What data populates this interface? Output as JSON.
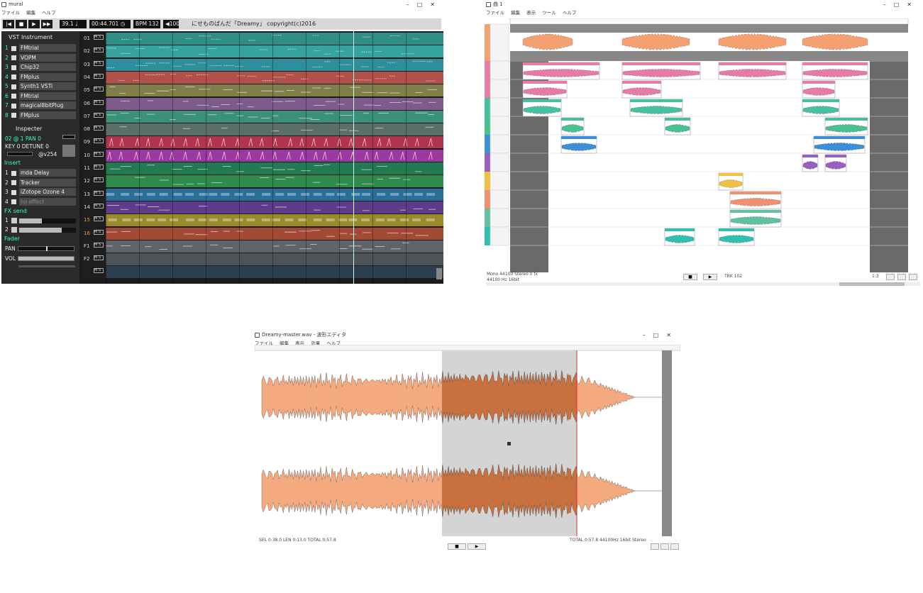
{
  "tracker": {
    "title": "mural",
    "menu": [
      "ファイル",
      "編集",
      "ヘルプ"
    ],
    "position": "39.1 ♩",
    "time": "00:44.701 ◷",
    "bpm": "BPM 132",
    "volume": "◀100",
    "song": "にせものぱんだ「Dreamy」 copyright(c)2016",
    "vst_title": "VST Instrument",
    "instruments": [
      {
        "n": "1",
        "name": "FMtrial"
      },
      {
        "n": "2",
        "name": "VOPM"
      },
      {
        "n": "3",
        "name": "Chip32"
      },
      {
        "n": "4",
        "name": "FMplus"
      },
      {
        "n": "5",
        "name": "Synth1 VSTi"
      },
      {
        "n": "6",
        "name": "FMtrial"
      },
      {
        "n": "7",
        "name": "magical8bitPlug"
      },
      {
        "n": "8",
        "name": "FMplus"
      }
    ],
    "inspector_title": "Inspecter",
    "insp_line1": "02  @ 1  PAN  0",
    "insp_line2": "KEY 0 DETUNE 0",
    "insp_line3": "@v254",
    "insert_title": "Insert",
    "inserts": [
      {
        "n": "1",
        "name": "mda Delay"
      },
      {
        "n": "2",
        "name": "Tracker"
      },
      {
        "n": "3",
        "name": "iZotope Ozone 4"
      },
      {
        "n": "4",
        "name": "no effect"
      }
    ],
    "fx_title": "FX send",
    "fx": [
      "1",
      "2"
    ],
    "fader_title": "Fader",
    "pan_label": "PAN",
    "vol_label": "VOL",
    "tracks": [
      {
        "n": "01",
        "c": "#2f8f86"
      },
      {
        "n": "02",
        "c": "#36a3a0"
      },
      {
        "n": "03",
        "c": "#2e8e9c"
      },
      {
        "n": "04",
        "c": "#b0524a"
      },
      {
        "n": "05",
        "c": "#7f7f4a"
      },
      {
        "n": "06",
        "c": "#7d5b8a"
      },
      {
        "n": "07",
        "c": "#3c9077"
      },
      {
        "n": "08",
        "c": "#5a6f6a"
      },
      {
        "n": "09",
        "c": "#b0364e"
      },
      {
        "n": "10",
        "c": "#9a3aa0"
      },
      {
        "n": "11",
        "c": "#237a52"
      },
      {
        "n": "12",
        "c": "#2f8a4e"
      },
      {
        "n": "13",
        "c": "#2a6e9a"
      },
      {
        "n": "14",
        "c": "#5e3c8a"
      },
      {
        "n": "15",
        "c": "#9a8a2a"
      },
      {
        "n": "16",
        "c": "#a24a36"
      },
      {
        "n": "F1",
        "c": "#5e6468"
      },
      {
        "n": "F2",
        "c": "#4c5458"
      },
      {
        "n": "",
        "c": "#2c3e50"
      }
    ]
  },
  "multitrack": {
    "title": "曲 1",
    "menu": [
      "ファイル",
      "編集",
      "表示",
      "ツール",
      "ヘルプ"
    ],
    "status_left": "Mono 44100 Stereo 0 fx",
    "status_left2": "44100 Hz 16bit",
    "status_mid": "TRK 102",
    "status_right": "1:3",
    "lane_colors": [
      "#f4a070",
      "#e87aa8",
      "#e87aa8",
      "#48c0a0",
      "#48c090",
      "#3a8fd8",
      "#9a60c0",
      "#f0c040",
      "#f09070",
      "#60c0a0",
      "#30c0b0"
    ]
  },
  "editor": {
    "title": "Dreamy-master.wav - 波形エディタ",
    "menu": [
      "ファイル",
      "編集",
      "表示",
      "効果",
      "ヘルプ"
    ],
    "status_left": "SEL 0:38.0 LEN 0:13.0 TOTAL 0:57.8",
    "status_right": "TOTAL 0:57.8  44100Hz  16bit  Stereo",
    "wave_color": "#f4a97e",
    "sel_color": "#c8713e"
  }
}
